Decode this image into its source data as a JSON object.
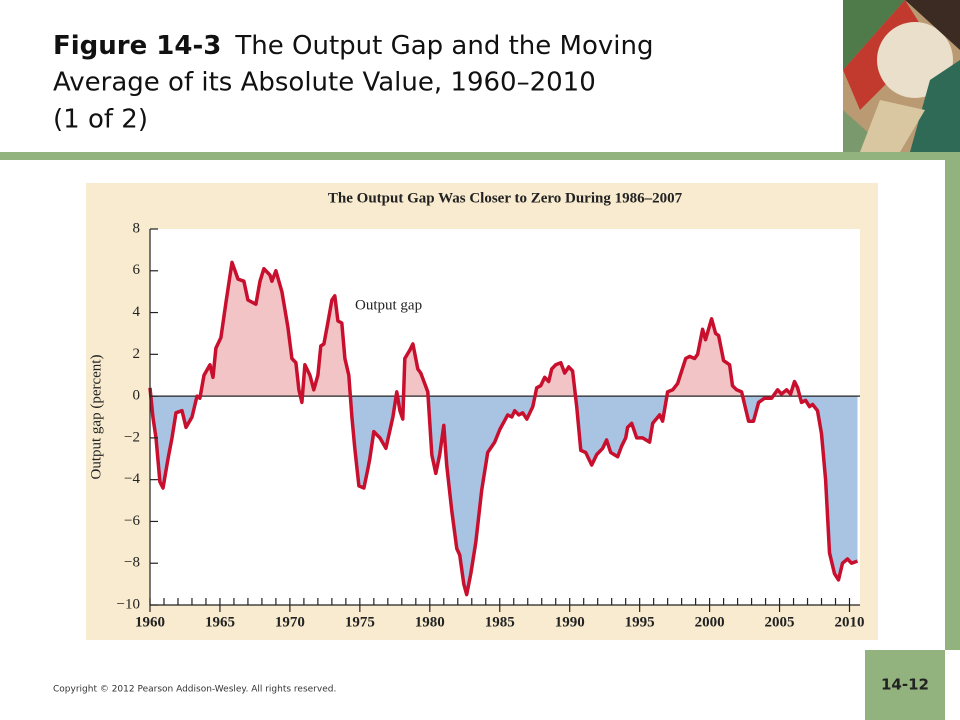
{
  "header": {
    "figure": "Figure 14-3",
    "title_lines": [
      "The Output Gap and the Moving",
      "Average of its Absolute Value, 1960–2010",
      "(1 of 2)"
    ]
  },
  "footer": {
    "copyright": "Copyright © 2012 Pearson Addison-Wesley. All rights reserved.",
    "slide_number": "14-12"
  },
  "chart_data": {
    "type": "line",
    "title": "The Output Gap Was Closer to Zero During 1986–2007",
    "y_label": "Output gap (percent)",
    "annotation": "Output gap",
    "color": "#c8102e",
    "fill_above": "#f2c4c6",
    "fill_below": "#a9c3e2",
    "xlim": [
      1960,
      2010.75
    ],
    "ylim": [
      -10,
      8
    ],
    "xticks": [
      1960,
      1965,
      1970,
      1975,
      1980,
      1985,
      1990,
      1995,
      2000,
      2005,
      2010
    ],
    "xminorticks": [
      1960,
      1961,
      1962,
      1963,
      1964,
      1965,
      1966,
      1967,
      1968,
      1969,
      1970,
      1971,
      1972,
      1973,
      1974,
      1975,
      1976,
      1977,
      1978,
      1979,
      1980,
      1981,
      1982,
      1983,
      1984,
      1985,
      1986,
      1987,
      1988,
      1989,
      1990,
      1991,
      1992,
      1993,
      1994,
      1995,
      1996,
      1997,
      1998,
      1999,
      2000,
      2001,
      2002,
      2003,
      2004,
      2005,
      2006,
      2007,
      2008,
      2009,
      2010
    ],
    "yticks": [
      {
        "value": -10,
        "label": "−10"
      },
      {
        "value": -8,
        "label": "−8"
      },
      {
        "value": -6,
        "label": "−6"
      },
      {
        "value": -4,
        "label": "−4"
      },
      {
        "value": -2,
        "label": "−2"
      },
      0,
      2,
      4,
      6,
      8
    ],
    "x": [
      1960.0,
      1960.21,
      1960.43,
      1960.71,
      1960.93,
      1961.29,
      1961.57,
      1961.86,
      1962.29,
      1962.57,
      1963.0,
      1963.36,
      1963.57,
      1963.86,
      1964.29,
      1964.5,
      1964.71,
      1965.07,
      1965.43,
      1965.86,
      1966.29,
      1966.71,
      1967.0,
      1967.57,
      1967.86,
      1968.14,
      1968.57,
      1968.71,
      1969.0,
      1969.43,
      1969.86,
      1970.14,
      1970.43,
      1970.64,
      1970.86,
      1971.07,
      1971.43,
      1971.71,
      1972.0,
      1972.21,
      1972.43,
      1972.71,
      1973.0,
      1973.21,
      1973.43,
      1973.71,
      1973.93,
      1974.21,
      1974.43,
      1974.64,
      1974.93,
      1975.29,
      1975.57,
      1975.71,
      1976.0,
      1976.43,
      1976.86,
      1977.36,
      1977.64,
      1977.86,
      1978.07,
      1978.21,
      1978.57,
      1978.79,
      1979.14,
      1979.36,
      1979.86,
      1980.14,
      1980.43,
      1980.71,
      1981.0,
      1981.21,
      1981.57,
      1981.93,
      1982.14,
      1982.43,
      1982.64,
      1982.93,
      1983.29,
      1983.71,
      1984.14,
      1984.64,
      1985.0,
      1985.57,
      1985.86,
      1986.07,
      1986.36,
      1986.64,
      1986.93,
      1987.36,
      1987.64,
      1987.93,
      1988.21,
      1988.5,
      1988.71,
      1989.0,
      1989.36,
      1989.64,
      1989.93,
      1990.21,
      1990.5,
      1990.79,
      1991.14,
      1991.57,
      1991.93,
      1992.36,
      1992.64,
      1992.93,
      1993.43,
      1993.71,
      1994.0,
      1994.14,
      1994.43,
      1994.79,
      1995.21,
      1995.71,
      1995.93,
      1996.43,
      1996.64,
      1997.0,
      1997.36,
      1997.71,
      1998.29,
      1998.57,
      1998.93,
      1999.14,
      1999.5,
      1999.71,
      2000.14,
      2000.43,
      2000.64,
      2001.0,
      2001.43,
      2001.64,
      2001.93,
      2002.29,
      2002.5,
      2002.79,
      2003.14,
      2003.5,
      2003.93,
      2004.43,
      2004.86,
      2005.14,
      2005.5,
      2005.79,
      2006.07,
      2006.29,
      2006.57,
      2006.86,
      2007.14,
      2007.36,
      2007.71,
      2008.0,
      2008.29,
      2008.57,
      2008.93,
      2009.21,
      2009.5,
      2009.86,
      2010.14,
      2010.57
    ],
    "values": [
      0.4,
      -1,
      -2,
      -4.1,
      -4.4,
      -3,
      -2,
      -0.8,
      -0.7,
      -1.5,
      -1,
      0,
      -0.1,
      1,
      1.5,
      0.9,
      2.3,
      2.8,
      4.5,
      6.4,
      5.6,
      5.5,
      4.6,
      4.4,
      5.5,
      6.1,
      5.8,
      5.5,
      6,
      5,
      3.3,
      1.8,
      1.6,
      0.3,
      -0.3,
      1.5,
      1,
      0.3,
      1,
      2.4,
      2.5,
      3.5,
      4.6,
      4.8,
      3.6,
      3.5,
      1.8,
      1,
      -1,
      -2.5,
      -4.3,
      -4.4,
      -3.5,
      -3,
      -1.7,
      -2,
      -2.5,
      -1,
      0.2,
      -0.7,
      -1.1,
      1.8,
      2.2,
      2.5,
      1.3,
      1.1,
      0.2,
      -2.8,
      -3.7,
      -2.8,
      -1.4,
      -3.3,
      -5.5,
      -7.3,
      -7.6,
      -9,
      -9.5,
      -8.5,
      -7,
      -4.5,
      -2.7,
      -2.2,
      -1.6,
      -0.9,
      -1,
      -0.7,
      -0.9,
      -0.8,
      -1.1,
      -0.5,
      0.4,
      0.5,
      0.9,
      0.7,
      1.3,
      1.5,
      1.6,
      1.1,
      1.4,
      1.2,
      -0.5,
      -2.6,
      -2.7,
      -3.3,
      -2.8,
      -2.5,
      -2.1,
      -2.7,
      -2.9,
      -2.4,
      -2,
      -1.5,
      -1.3,
      -2,
      -2,
      -2.2,
      -1.3,
      -0.9,
      -1.2,
      0.2,
      0.3,
      0.6,
      1.8,
      1.9,
      1.8,
      2,
      3.2,
      2.7,
      3.7,
      3,
      2.9,
      1.7,
      1.5,
      0.5,
      0.3,
      0.2,
      -0.4,
      -1.2,
      -1.2,
      -0.3,
      -0.1,
      -0.1,
      0.3,
      0.1,
      0.3,
      0.1,
      0.7,
      0.4,
      -0.3,
      -0.2,
      -0.5,
      -0.4,
      -0.7,
      -1.8,
      -4,
      -7.5,
      -8.5,
      -8.8,
      -8,
      -7.8,
      -8,
      -7.9
    ]
  }
}
